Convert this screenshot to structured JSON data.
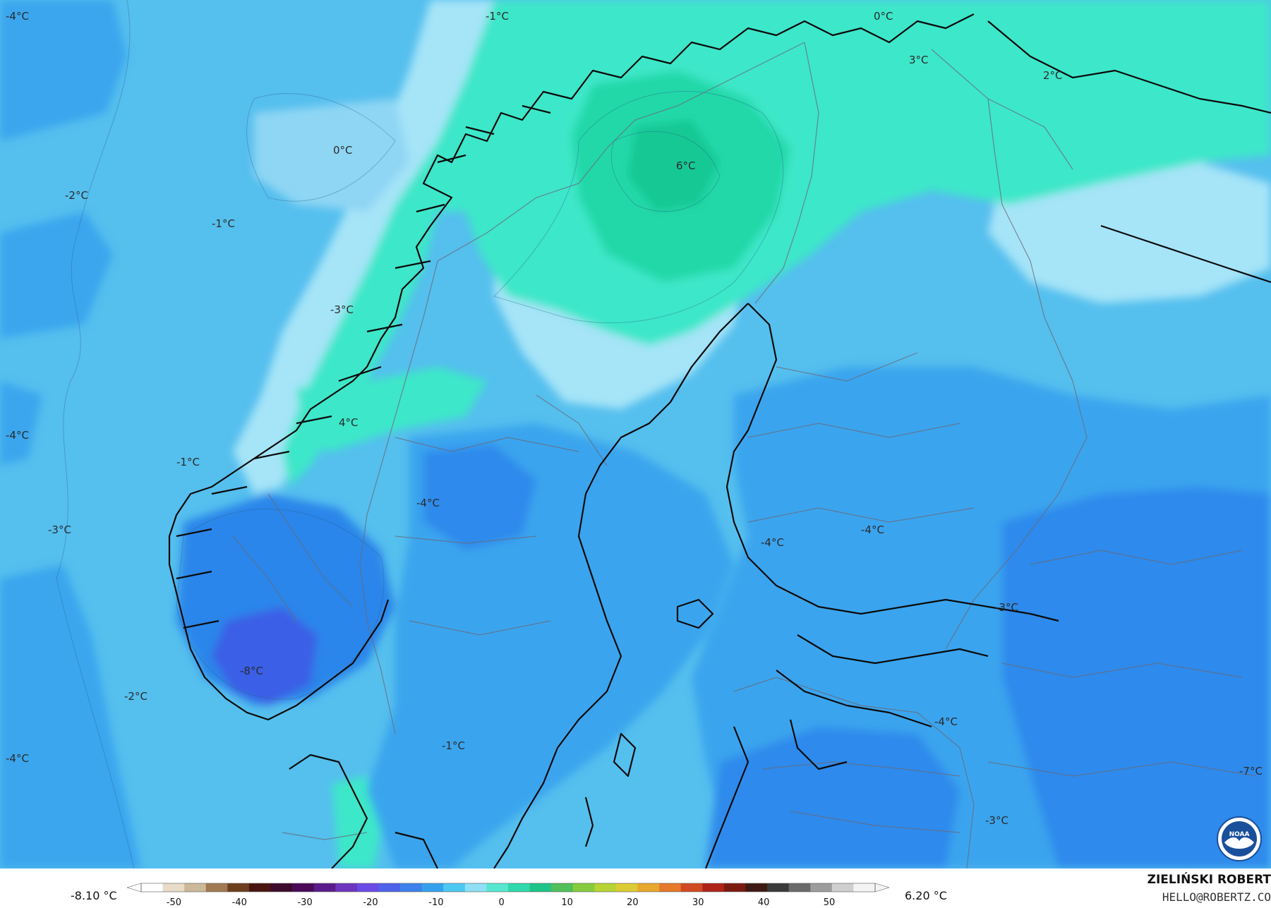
{
  "map": {
    "isotherm_labels": [
      "-4°C",
      "-1°C",
      "0°C",
      "3°C",
      "2°C",
      "0°C",
      "-2°C",
      "-1°C",
      "6°C",
      "-3°C",
      "4°C",
      "-4°C",
      "-1°C",
      "-4°C",
      "-3°C",
      "-4°C",
      "-4°C",
      "-3°C",
      "-8°C",
      "-2°C",
      "-1°C",
      "-4°C",
      "-4°C",
      "-7°C",
      "-3°C"
    ],
    "colors": {
      "ocean": "#55bfee",
      "cold_land": "#3aa4ee",
      "colder": "#2c86ea",
      "coldest": "#3a5fe6",
      "near_zero": "#a8e6f8",
      "warm": "#3fe8c8",
      "warmer": "#22d6a6"
    }
  },
  "legend": {
    "min_label": "-8.10 °C",
    "max_label": "6.20 °C",
    "ticks": [
      "-50",
      "-40",
      "-30",
      "-20",
      "-10",
      "0",
      "10",
      "20",
      "30",
      "40",
      "50"
    ],
    "colors": [
      "#fefefe",
      "#e8dcc8",
      "#cdb89a",
      "#a07a52",
      "#6e3f1e",
      "#4a1410",
      "#3c0a2c",
      "#4a0a58",
      "#5a1c8a",
      "#6f34c0",
      "#6a4ae6",
      "#4f62ea",
      "#3c82ec",
      "#33a2ee",
      "#4cc8f2",
      "#8ee0f7",
      "#56e8cf",
      "#2fd9ad",
      "#1fc488",
      "#52c05a",
      "#86cc3c",
      "#b8d434",
      "#dccb34",
      "#e8a82e",
      "#e6792a",
      "#d24a22",
      "#b02418",
      "#7c1a10",
      "#3e1a14",
      "#3a3a3a",
      "#6a6a6a",
      "#9c9c9c",
      "#cfcfcf",
      "#f4f4f4"
    ]
  },
  "credit": {
    "name": "ZIELIŃSKI ROBERT",
    "email": "HELLO@ROBERTZ.CO"
  },
  "logo": {
    "text": "NOAA",
    "icon": "noaa-seagull-logo"
  }
}
